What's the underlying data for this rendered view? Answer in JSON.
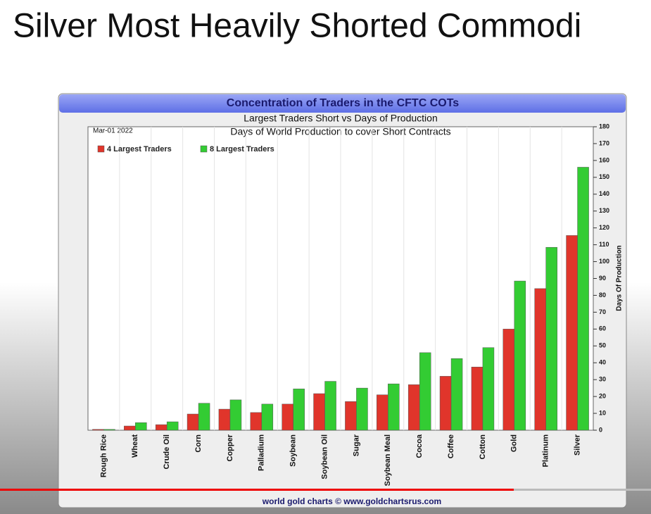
{
  "slide": {
    "title": "Silver Most Heavily Shorted Commodi"
  },
  "chart_data": {
    "type": "bar",
    "title": "Concentration of Traders in the CFTC COTs",
    "subtitle": "Largest Traders Short vs Days of Production",
    "subtitle2": "Days of World Production to cover Short Contracts",
    "date": "Mar-01  2022",
    "ylabel": "Days Of Production",
    "source": "world gold charts © www.goldchartsrus.com",
    "categories": [
      "Rough Rice",
      "Wheat",
      "Crude Oil",
      "Corn",
      "Copper",
      "Palladium",
      "Soybean",
      "Soybean Oil",
      "Sugar",
      "Soybean Meal",
      "Cocoa",
      "Coffee",
      "Cotton",
      "Gold",
      "Platinum",
      "Silver"
    ],
    "series": [
      {
        "name": "4 Largest Traders",
        "color": "#e0352b",
        "values": [
          0.5,
          2.5,
          3.3,
          9.6,
          12.5,
          10.5,
          15.5,
          21.7,
          17,
          21,
          27,
          32,
          37.5,
          60,
          84,
          115.5
        ]
      },
      {
        "name": "8 Largest Traders",
        "color": "#33cc33",
        "values": [
          0.5,
          4.5,
          5,
          16,
          18,
          15.5,
          24.5,
          29,
          25,
          27.5,
          46,
          42.5,
          49,
          88.5,
          108.5,
          156
        ]
      }
    ],
    "ylim": [
      0,
      180
    ],
    "yticks": [
      0,
      10,
      20,
      30,
      40,
      50,
      60,
      70,
      80,
      90,
      100,
      110,
      120,
      130,
      140,
      150,
      160,
      170,
      180
    ],
    "y_axis_side": "right",
    "legend": "top-left"
  }
}
